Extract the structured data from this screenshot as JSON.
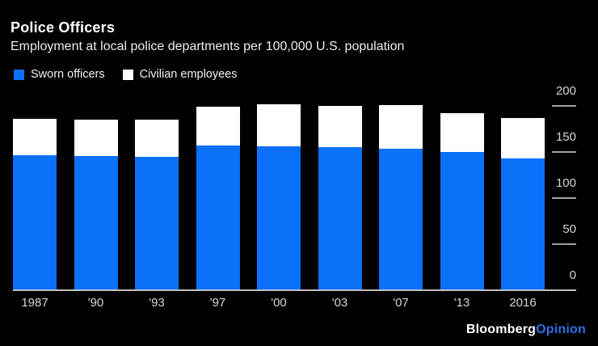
{
  "header": {
    "title": "Police Officers",
    "subtitle": "Employment at local police departments per 100,000 U.S. population"
  },
  "legend": [
    {
      "label": "Sworn officers",
      "color": "#0b70fa"
    },
    {
      "label": "Civilian employees",
      "color": "#ffffff"
    }
  ],
  "chart_data": {
    "type": "bar",
    "stacked": true,
    "title": "Police Officers",
    "subtitle": "Employment at local police departments per 100,000 U.S. population",
    "categories": [
      "1987",
      "'90",
      "'93",
      "'97",
      "'00",
      "'03",
      "'07",
      "'13",
      "2016"
    ],
    "series": [
      {
        "name": "Sworn officers",
        "color": "#0b70fa",
        "values": [
          146,
          145,
          144,
          156,
          155,
          154,
          153,
          149,
          142
        ]
      },
      {
        "name": "Civilian employees",
        "color": "#ffffff",
        "values": [
          39,
          39,
          40,
          42,
          46,
          45,
          47,
          42,
          44
        ]
      }
    ],
    "totals": [
      185,
      184,
      184,
      198,
      201,
      199,
      200,
      191,
      186
    ],
    "xlabel": "",
    "ylabel": "",
    "y_ticks": [
      0,
      50,
      100,
      150,
      200
    ],
    "ylim": [
      0,
      200
    ],
    "axis_side": "right",
    "grid": false,
    "legend_position": "top-left",
    "background": "#000000"
  },
  "footer": {
    "brand": "Bloomberg",
    "brand_suffix": "Opinion",
    "suffix_color": "#2e6de3"
  }
}
